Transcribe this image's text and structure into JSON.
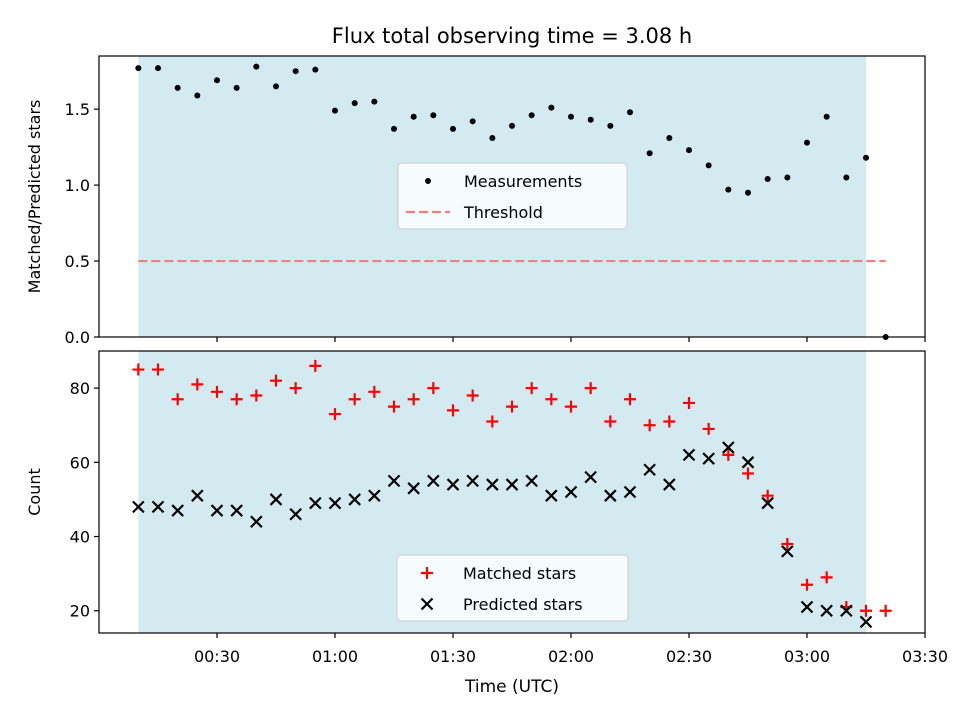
{
  "title": "Flux total observing time = 3.08 h",
  "x_tick_labels": [
    "00:30",
    "01:00",
    "01:30",
    "02:00",
    "02:30",
    "03:00",
    "03:30"
  ],
  "xlabel": "Time (UTC)",
  "shade_color": "#d3eaf0",
  "chart_data": [
    {
      "type": "scatter",
      "name_id": "ratio-panel",
      "ylabel": "Matched/Predicted stars",
      "ylim": [
        0,
        1.85
      ],
      "y_ticks": [
        0.0,
        0.5,
        1.0,
        1.5
      ],
      "y_tick_labels": [
        "0.0",
        "0.5",
        "1.0",
        "1.5"
      ],
      "x_unit": "minutes since 00:00 UTC",
      "xlim": [
        0,
        210
      ],
      "shaded_range": [
        10,
        195
      ],
      "legend_position": "center",
      "series": [
        {
          "name": "Measurements",
          "marker": "dot",
          "color": "#000000",
          "x": [
            10,
            15,
            20,
            25,
            30,
            35,
            40,
            45,
            50,
            55,
            60,
            65,
            70,
            75,
            80,
            85,
            90,
            95,
            100,
            105,
            110,
            115,
            120,
            125,
            130,
            135,
            140,
            145,
            150,
            155,
            160,
            165,
            170,
            175,
            180,
            185,
            190,
            195,
            200
          ],
          "y": [
            1.77,
            1.77,
            1.64,
            1.59,
            1.69,
            1.64,
            1.78,
            1.65,
            1.75,
            1.76,
            1.49,
            1.54,
            1.55,
            1.37,
            1.45,
            1.46,
            1.37,
            1.42,
            1.31,
            1.39,
            1.46,
            1.51,
            1.45,
            1.43,
            1.39,
            1.48,
            1.21,
            1.31,
            1.23,
            1.13,
            0.97,
            0.95,
            1.04,
            1.05,
            1.28,
            1.45,
            1.05,
            1.18,
            0.0
          ]
        },
        {
          "name": "Threshold",
          "marker": "dashed-line",
          "color": "#f08080",
          "x": [
            10,
            200
          ],
          "y": [
            0.5,
            0.5
          ]
        }
      ]
    },
    {
      "type": "scatter",
      "name_id": "count-panel",
      "ylabel": "Count",
      "ylim": [
        14,
        90
      ],
      "y_ticks": [
        20,
        40,
        60,
        80
      ],
      "y_tick_labels": [
        "20",
        "40",
        "60",
        "80"
      ],
      "x_unit": "minutes since 00:00 UTC",
      "xlim": [
        0,
        210
      ],
      "shaded_range": [
        10,
        195
      ],
      "legend_position": "lower center",
      "series": [
        {
          "name": "Matched stars",
          "marker": "plus",
          "color": "#ff0000",
          "x": [
            10,
            15,
            20,
            25,
            30,
            35,
            40,
            45,
            50,
            55,
            60,
            65,
            70,
            75,
            80,
            85,
            90,
            95,
            100,
            105,
            110,
            115,
            120,
            125,
            130,
            135,
            140,
            145,
            150,
            155,
            160,
            165,
            170,
            175,
            180,
            185,
            190,
            195,
            200
          ],
          "y": [
            85,
            85,
            77,
            81,
            79,
            77,
            78,
            82,
            80,
            86,
            73,
            77,
            79,
            75,
            77,
            80,
            74,
            78,
            71,
            75,
            80,
            77,
            75,
            80,
            71,
            77,
            70,
            71,
            76,
            69,
            62,
            57,
            51,
            38,
            27,
            29,
            21,
            20,
            20
          ]
        },
        {
          "name": "Predicted stars",
          "marker": "x",
          "color": "#000000",
          "x": [
            10,
            15,
            20,
            25,
            30,
            35,
            40,
            45,
            50,
            55,
            60,
            65,
            70,
            75,
            80,
            85,
            90,
            95,
            100,
            105,
            110,
            115,
            120,
            125,
            130,
            135,
            140,
            145,
            150,
            155,
            160,
            165,
            170,
            175,
            180,
            185,
            190,
            195
          ],
          "y": [
            48,
            48,
            47,
            51,
            47,
            47,
            44,
            50,
            46,
            49,
            49,
            50,
            51,
            55,
            53,
            55,
            54,
            55,
            54,
            54,
            55,
            51,
            52,
            56,
            51,
            52,
            58,
            54,
            62,
            61,
            64,
            60,
            49,
            36,
            21,
            20,
            20,
            17
          ]
        }
      ]
    }
  ]
}
